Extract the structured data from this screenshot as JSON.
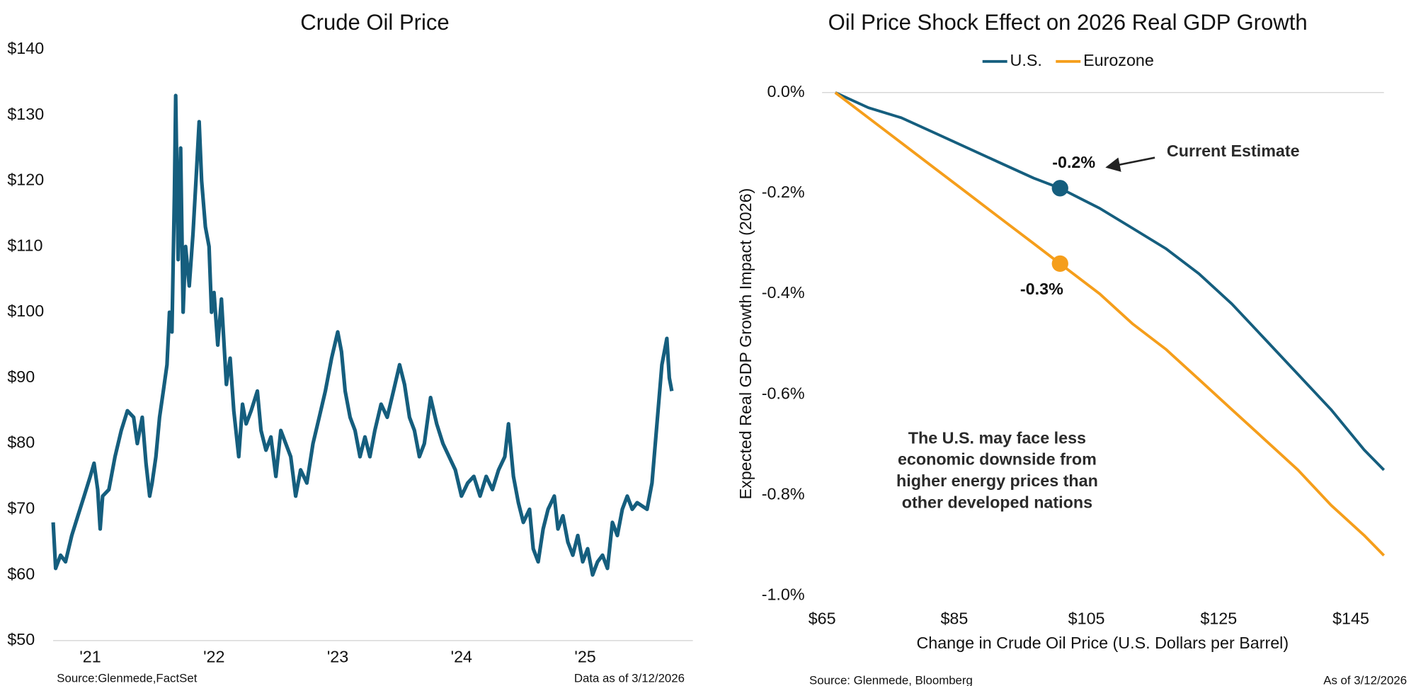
{
  "chart_data": [
    {
      "type": "line",
      "title": "Crude Oil Price",
      "x": [
        2021.2,
        2021.22,
        2021.26,
        2021.3,
        2021.35,
        2021.4,
        2021.45,
        2021.5,
        2021.53,
        2021.56,
        2021.58,
        2021.6,
        2021.65,
        2021.7,
        2021.75,
        2021.8,
        2021.85,
        2021.88,
        2021.92,
        2021.95,
        2021.98,
        2022.0,
        2022.03,
        2022.06,
        2022.09,
        2022.12,
        2022.14,
        2022.16,
        2022.18,
        2022.19,
        2022.21,
        2022.23,
        2022.25,
        2022.27,
        2022.3,
        2022.33,
        2022.36,
        2022.38,
        2022.4,
        2022.43,
        2022.46,
        2022.48,
        2022.5,
        2022.53,
        2022.56,
        2022.6,
        2022.63,
        2022.66,
        2022.7,
        2022.73,
        2022.76,
        2022.8,
        2022.85,
        2022.88,
        2022.92,
        2022.96,
        2023.0,
        2023.04,
        2023.08,
        2023.12,
        2023.16,
        2023.2,
        2023.25,
        2023.3,
        2023.35,
        2023.4,
        2023.45,
        2023.5,
        2023.53,
        2023.56,
        2023.6,
        2023.64,
        2023.68,
        2023.72,
        2023.76,
        2023.8,
        2023.85,
        2023.9,
        2023.95,
        2024.0,
        2024.04,
        2024.08,
        2024.12,
        2024.16,
        2024.2,
        2024.25,
        2024.3,
        2024.35,
        2024.4,
        2024.45,
        2024.5,
        2024.55,
        2024.6,
        2024.65,
        2024.7,
        2024.75,
        2024.8,
        2024.85,
        2024.88,
        2024.92,
        2024.96,
        2025.0,
        2025.05,
        2025.08,
        2025.12,
        2025.16,
        2025.2,
        2025.25,
        2025.28,
        2025.32,
        2025.36,
        2025.4,
        2025.44,
        2025.48,
        2025.52,
        2025.56,
        2025.6,
        2025.64,
        2025.68,
        2025.72,
        2025.76,
        2025.8,
        2025.84,
        2025.88,
        2025.92,
        2026.0,
        2026.04,
        2026.08,
        2026.12,
        2026.16,
        2026.18,
        2026.2
      ],
      "series": [
        {
          "color": "#155e7e",
          "values": [
            68,
            61,
            63,
            62,
            66,
            69,
            72,
            75,
            77,
            73,
            67,
            72,
            73,
            78,
            82,
            85,
            84,
            80,
            84,
            77,
            72,
            74,
            78,
            84,
            88,
            92,
            100,
            97,
            118,
            133,
            108,
            125,
            100,
            110,
            104,
            112,
            122,
            129,
            120,
            113,
            110,
            100,
            103,
            95,
            102,
            89,
            93,
            85,
            78,
            86,
            83,
            85,
            88,
            82,
            79,
            81,
            75,
            82,
            80,
            78,
            72,
            76,
            74,
            80,
            84,
            88,
            93,
            97,
            94,
            88,
            84,
            82,
            78,
            81,
            78,
            82,
            86,
            84,
            88,
            92,
            89,
            84,
            82,
            78,
            80,
            87,
            83,
            80,
            78,
            76,
            72,
            74,
            75,
            72,
            75,
            73,
            76,
            78,
            83,
            75,
            71,
            68,
            70,
            64,
            62,
            67,
            70,
            72,
            67,
            69,
            65,
            63,
            66,
            62,
            64,
            60,
            62,
            63,
            61,
            68,
            66,
            70,
            72,
            70,
            71,
            70,
            74,
            83,
            92,
            96,
            90,
            88
          ]
        }
      ],
      "xlim": [
        2021.2,
        2026.37
      ],
      "xticks": [
        {
          "value": 2021.5,
          "label": "'21"
        },
        {
          "value": 2022.5,
          "label": "'22"
        },
        {
          "value": 2023.5,
          "label": "'23"
        },
        {
          "value": 2024.5,
          "label": "'24"
        },
        {
          "value": 2025.5,
          "label": "'25"
        }
      ],
      "ylim": [
        50,
        140
      ],
      "yticks": [
        {
          "value": 50,
          "label": "$50"
        },
        {
          "value": 60,
          "label": "$60"
        },
        {
          "value": 70,
          "label": "$70"
        },
        {
          "value": 80,
          "label": "$80"
        },
        {
          "value": 90,
          "label": "$90"
        },
        {
          "value": 100,
          "label": "$100"
        },
        {
          "value": 110,
          "label": "$110"
        },
        {
          "value": 120,
          "label": "$120"
        },
        {
          "value": 130,
          "label": "$130"
        },
        {
          "value": 140,
          "label": "$140"
        }
      ],
      "source": "Source:Glenmede,FactSet",
      "note": "Data as of 3/12/2026"
    },
    {
      "type": "line",
      "title": "Oil Price Shock Effect on 2026 Real GDP Growth",
      "x_label": "Change in Crude Oil Price (U.S. Dollars per Barrel)",
      "y_label": "Expected Real GDP Growth Impact (2026)",
      "x": [
        67,
        72,
        77,
        82,
        87,
        92,
        97,
        101,
        107,
        112,
        117,
        122,
        127,
        132,
        137,
        142,
        147,
        150
      ],
      "series": [
        {
          "name": "U.S.",
          "color": "#155e7e",
          "values": [
            0,
            -0.03,
            -0.05,
            -0.08,
            -0.11,
            -0.14,
            -0.17,
            -0.19,
            -0.23,
            -0.27,
            -0.31,
            -0.36,
            -0.42,
            -0.49,
            -0.56,
            -0.63,
            -0.71,
            -0.75
          ],
          "value_labels": [
            null,
            null,
            null,
            null,
            null,
            null,
            null,
            "-0.2%",
            null,
            null,
            null,
            null,
            null,
            null,
            null,
            null,
            null,
            null
          ]
        },
        {
          "name": "Eurozone",
          "color": "#f59e1b",
          "values": [
            0,
            -0.05,
            -0.1,
            -0.15,
            -0.2,
            -0.25,
            -0.3,
            -0.34,
            -0.4,
            -0.46,
            -0.51,
            -0.57,
            -0.63,
            -0.69,
            -0.75,
            -0.82,
            -0.88,
            -0.92
          ],
          "value_labels": [
            null,
            null,
            null,
            null,
            null,
            null,
            null,
            "-0.3%",
            null,
            null,
            null,
            null,
            null,
            null,
            null,
            null,
            null,
            null
          ]
        }
      ],
      "xlim": [
        65,
        150
      ],
      "xticks": [
        {
          "value": 65,
          "label": "$65"
        },
        {
          "value": 85,
          "label": "$85"
        },
        {
          "value": 105,
          "label": "$105"
        },
        {
          "value": 125,
          "label": "$125"
        },
        {
          "value": 145,
          "label": "$145"
        }
      ],
      "ylim": [
        -1,
        0
      ],
      "yticks": [
        {
          "value": -1,
          "label": "-1.0%"
        },
        {
          "value": -0.8,
          "label": "-0.8%"
        },
        {
          "value": -0.6,
          "label": "-0.6%"
        },
        {
          "value": -0.4,
          "label": "-0.4%"
        },
        {
          "value": -0.2,
          "label": "-0.2%"
        },
        {
          "value": 0,
          "label": "0.0%"
        }
      ],
      "legend": "top",
      "callout": "Current Estimate",
      "annotation": [
        "The U.S. may face less",
        "economic downside from",
        "higher energy prices than",
        "other developed nations"
      ],
      "source": "Source: Glenmede, Bloomberg",
      "note": "As of 3/12/2026"
    }
  ]
}
